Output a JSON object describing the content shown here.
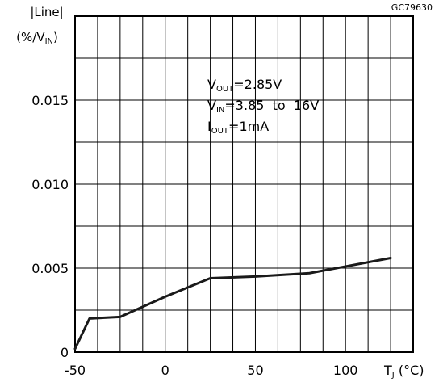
{
  "chart_data": {
    "type": "line",
    "figure_code": "GC79630",
    "ylabel_line1": "|Line|",
    "ylabel_unit_main": "(%/V",
    "ylabel_unit_sub": "IN",
    "ylabel_unit_close": ")",
    "xlabel_main": "T",
    "xlabel_sub": "J",
    "xlabel_unit": " (°C)",
    "xlim": [
      -50,
      137.5
    ],
    "ylim": [
      0,
      0.02
    ],
    "x_ticks": [
      -50,
      0,
      50,
      100
    ],
    "x_tick_labels": [
      "-50",
      "0",
      "50",
      "100"
    ],
    "y_ticks": [
      0,
      0.005,
      0.01,
      0.015
    ],
    "y_tick_labels": [
      "0",
      "0.005",
      "0.010",
      "0.015"
    ],
    "grid_x_step": 12.5,
    "grid_y_step": 0.0025,
    "grid": true,
    "conditions": [
      {
        "main": "V",
        "sub": "OUT",
        "rest": "=2.85V"
      },
      {
        "main": "V",
        "sub": "IN",
        "rest": "=3.85  to  16V"
      },
      {
        "main": "I",
        "sub": "OUT",
        "rest": "=1mA"
      }
    ],
    "series": [
      {
        "x": [
          -50,
          -42,
          -25,
          0,
          25,
          50,
          80,
          100,
          125
        ],
        "values": [
          0.0002,
          0.002,
          0.0021,
          0.0033,
          0.0044,
          0.0045,
          0.0047,
          0.0051,
          0.0056
        ]
      }
    ],
    "line_color": "#1a1a1a"
  }
}
